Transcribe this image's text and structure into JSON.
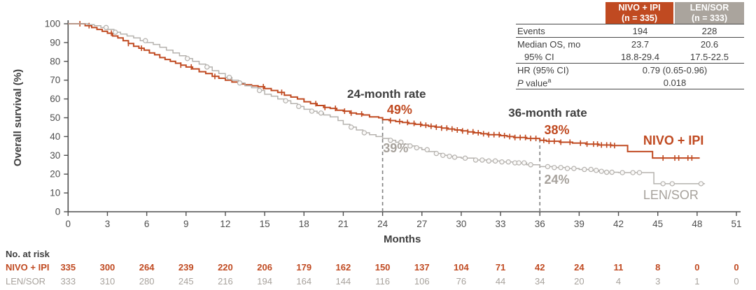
{
  "chart": {
    "colors": {
      "nivo": "#c04a21",
      "len_curve": "#b5b2ae",
      "len_text": "#a7a29c",
      "dark_text": "#3e3e3e",
      "axis": "#4f4f4f"
    }
  },
  "chart_data": {
    "type": "line",
    "subtype": "kaplan-meier-step",
    "title": "",
    "xlabel": "Months",
    "ylabel": "Overall survival (%)",
    "xlim": [
      0,
      51
    ],
    "ylim": [
      0,
      100
    ],
    "x_ticks": [
      0,
      3,
      6,
      9,
      12,
      15,
      18,
      21,
      24,
      27,
      30,
      33,
      36,
      39,
      42,
      45,
      48,
      51
    ],
    "y_ticks": [
      0,
      10,
      20,
      30,
      40,
      50,
      60,
      70,
      80,
      90,
      100
    ],
    "grid": false,
    "legend_position": "curve-end-labels",
    "series": [
      {
        "name": "NIVO + IPI",
        "color": "#c04a21",
        "censor_marker": "tick",
        "points": [
          [
            0,
            100
          ],
          [
            1.0,
            100
          ],
          [
            1.3,
            99
          ],
          [
            1.8,
            98
          ],
          [
            2.2,
            97
          ],
          [
            2.6,
            96
          ],
          [
            3.0,
            95
          ],
          [
            3.4,
            93.5
          ],
          [
            3.8,
            92.5
          ],
          [
            4.2,
            91
          ],
          [
            4.6,
            89.5
          ],
          [
            5.0,
            88
          ],
          [
            5.4,
            87
          ],
          [
            5.8,
            86
          ],
          [
            6.2,
            84.5
          ],
          [
            6.6,
            83.5
          ],
          [
            7.0,
            82
          ],
          [
            7.4,
            81
          ],
          [
            7.8,
            80
          ],
          [
            8.2,
            79
          ],
          [
            8.6,
            78
          ],
          [
            9.0,
            77
          ],
          [
            9.5,
            76
          ],
          [
            10.0,
            74.5
          ],
          [
            10.5,
            73.5
          ],
          [
            11.0,
            72
          ],
          [
            11.5,
            71
          ],
          [
            12.0,
            70
          ],
          [
            12.5,
            69
          ],
          [
            13.0,
            68
          ],
          [
            13.5,
            67.5
          ],
          [
            14.0,
            67
          ],
          [
            14.5,
            66.5
          ],
          [
            15.0,
            65.5
          ],
          [
            15.5,
            64.5
          ],
          [
            16.0,
            63.5
          ],
          [
            16.5,
            62
          ],
          [
            17.0,
            61
          ],
          [
            17.5,
            60
          ],
          [
            18.0,
            58.5
          ],
          [
            18.5,
            57.5
          ],
          [
            19.0,
            56.5
          ],
          [
            19.5,
            55.5
          ],
          [
            20.0,
            55
          ],
          [
            20.5,
            54
          ],
          [
            21.0,
            53.5
          ],
          [
            21.5,
            52.5
          ],
          [
            22.0,
            52
          ],
          [
            22.5,
            51.5
          ],
          [
            23.0,
            50.5
          ],
          [
            23.7,
            50
          ],
          [
            24.0,
            49
          ],
          [
            24.5,
            48.5
          ],
          [
            25.0,
            48
          ],
          [
            25.5,
            47.5
          ],
          [
            26.0,
            47
          ],
          [
            26.5,
            46.5
          ],
          [
            27.0,
            46
          ],
          [
            27.5,
            45.5
          ],
          [
            28.0,
            45
          ],
          [
            28.5,
            44.5
          ],
          [
            29.0,
            44
          ],
          [
            29.5,
            43.5
          ],
          [
            30.0,
            43
          ],
          [
            30.5,
            42.5
          ],
          [
            31.0,
            42
          ],
          [
            31.5,
            41.5
          ],
          [
            32.0,
            41
          ],
          [
            33.0,
            40.5
          ],
          [
            33.5,
            40
          ],
          [
            34.0,
            39.5
          ],
          [
            35.0,
            39
          ],
          [
            36.0,
            38
          ],
          [
            36.5,
            37.5
          ],
          [
            37.5,
            37
          ],
          [
            38.5,
            36.5
          ],
          [
            39.5,
            36
          ],
          [
            40.5,
            35.5
          ],
          [
            41.5,
            35.2
          ],
          [
            42.7,
            32
          ],
          [
            44.6,
            28.6
          ],
          [
            48.2,
            28.6
          ]
        ],
        "censor_months": [
          0.9,
          1.6,
          3.3,
          4.6,
          5.6,
          8.6,
          9.4,
          11.2,
          14.9,
          16.3,
          18.9,
          19.6,
          20.4,
          21.1,
          21.6,
          22.4,
          24.6,
          25.3,
          25.9,
          26.4,
          26.9,
          27.3,
          27.7,
          28.1,
          28.5,
          28.9,
          29.3,
          29.7,
          30.1,
          30.5,
          30.9,
          31.3,
          31.7,
          32.1,
          32.5,
          32.9,
          33.3,
          33.7,
          34.1,
          34.5,
          34.9,
          35.3,
          35.7,
          36.3,
          36.7,
          37.1,
          37.6,
          38.3,
          39.1,
          39.6,
          40.1,
          40.4,
          40.7,
          41.1,
          41.4,
          41.7,
          45.4,
          46.3,
          46.6,
          47.3,
          47.6
        ]
      },
      {
        "name": "LEN/SOR",
        "color": "#b5b2ae",
        "censor_marker": "circle",
        "points": [
          [
            0,
            100
          ],
          [
            1.1,
            100
          ],
          [
            1.5,
            99.5
          ],
          [
            2.0,
            99
          ],
          [
            2.5,
            98
          ],
          [
            3.0,
            97
          ],
          [
            3.5,
            95.5
          ],
          [
            4.0,
            94.5
          ],
          [
            4.5,
            93.5
          ],
          [
            5.0,
            92.5
          ],
          [
            5.5,
            91
          ],
          [
            6.0,
            90
          ],
          [
            6.5,
            89
          ],
          [
            7.0,
            87.5
          ],
          [
            7.5,
            86
          ],
          [
            8.0,
            84.5
          ],
          [
            8.5,
            83
          ],
          [
            9.0,
            81.5
          ],
          [
            9.5,
            80
          ],
          [
            10.0,
            78.5
          ],
          [
            10.5,
            77
          ],
          [
            11.0,
            75
          ],
          [
            11.5,
            73.5
          ],
          [
            12.0,
            71.5
          ],
          [
            12.5,
            70
          ],
          [
            13.0,
            68.5
          ],
          [
            13.5,
            67
          ],
          [
            14.0,
            66
          ],
          [
            14.5,
            64.5
          ],
          [
            15.0,
            62.5
          ],
          [
            15.5,
            61.5
          ],
          [
            16.0,
            60
          ],
          [
            16.5,
            59
          ],
          [
            17.0,
            57.5
          ],
          [
            17.5,
            56
          ],
          [
            18.0,
            54.5
          ],
          [
            18.5,
            53.5
          ],
          [
            19.0,
            52.5
          ],
          [
            19.5,
            51.5
          ],
          [
            20.0,
            50.5
          ],
          [
            20.6,
            48.5
          ],
          [
            21.0,
            46.5
          ],
          [
            21.5,
            45
          ],
          [
            22.0,
            43.5
          ],
          [
            22.5,
            42
          ],
          [
            23.0,
            41
          ],
          [
            23.5,
            40
          ],
          [
            24.0,
            39
          ],
          [
            24.5,
            38
          ],
          [
            25.0,
            37
          ],
          [
            25.5,
            36
          ],
          [
            26.0,
            35
          ],
          [
            26.5,
            34
          ],
          [
            27.0,
            33
          ],
          [
            27.5,
            32
          ],
          [
            28.0,
            31
          ],
          [
            28.5,
            30
          ],
          [
            29.0,
            29.5
          ],
          [
            29.5,
            29
          ],
          [
            30.0,
            28.5
          ],
          [
            31.0,
            27.5
          ],
          [
            32.0,
            27
          ],
          [
            33.0,
            26.5
          ],
          [
            34.0,
            26
          ],
          [
            35.0,
            25
          ],
          [
            36.0,
            24
          ],
          [
            37.0,
            23.5
          ],
          [
            38.0,
            23
          ],
          [
            39.0,
            22.5
          ],
          [
            40.0,
            22
          ],
          [
            40.5,
            21.5
          ],
          [
            41.0,
            21
          ],
          [
            42.0,
            20.8
          ],
          [
            44.7,
            14.9
          ],
          [
            48.6,
            14.9
          ]
        ],
        "censor_months": [
          2.9,
          3.6,
          5.9,
          9.1,
          10.6,
          12.3,
          13.1,
          14.6,
          16.6,
          17.6,
          18.6,
          19.3,
          21.6,
          22.6,
          24.6,
          25.4,
          26.1,
          26.6,
          27.4,
          28.1,
          28.6,
          29.1,
          29.5,
          30.3,
          31.1,
          31.6,
          32.1,
          32.6,
          33.1,
          33.6,
          34.1,
          34.4,
          34.8,
          35.3,
          36.6,
          37.1,
          37.6,
          38.1,
          38.6,
          39.4,
          39.9,
          40.3,
          40.7,
          41.1,
          41.5,
          42.3,
          43.1,
          43.6,
          45.4,
          46.1,
          48.3
        ]
      }
    ],
    "reference_lines": [
      {
        "month": 24,
        "pct_top": 50.2
      },
      {
        "month": 36,
        "pct_top": 39.8
      }
    ],
    "annotations": [
      {
        "id": "rate-24-title",
        "text": "24-month rate",
        "month": 24.3,
        "pct": 60.6,
        "color": "#3e3e3e",
        "size": 17,
        "weight": "bold",
        "anchor": "middle"
      },
      {
        "id": "rate-24-nivo",
        "text": "49%",
        "month": 25.3,
        "pct": 52.0,
        "color": "#c04a21",
        "size": 18,
        "weight": "bold",
        "anchor": "middle"
      },
      {
        "id": "rate-24-len",
        "text": "39%",
        "month": 25.0,
        "pct": 31.6,
        "color": "#a7a29c",
        "size": 18,
        "weight": "bold",
        "anchor": "middle"
      },
      {
        "id": "rate-36-title",
        "text": "36-month rate",
        "month": 36.6,
        "pct": 50.6,
        "color": "#3e3e3e",
        "size": 17,
        "weight": "bold",
        "anchor": "middle"
      },
      {
        "id": "rate-36-nivo",
        "text": "38%",
        "month": 37.3,
        "pct": 41.3,
        "color": "#c04a21",
        "size": 18,
        "weight": "bold",
        "anchor": "middle"
      },
      {
        "id": "rate-36-len",
        "text": "24%",
        "month": 37.3,
        "pct": 14.9,
        "color": "#a7a29c",
        "size": 18,
        "weight": "bold",
        "anchor": "middle"
      },
      {
        "id": "curve-label-nivo",
        "text": "NIVO + IPI",
        "month": 46.2,
        "pct": 35.7,
        "color": "#c04a21",
        "size": 18,
        "weight": "bold",
        "anchor": "middle"
      },
      {
        "id": "curve-label-len",
        "text": "LEN/SOR",
        "month": 46.0,
        "pct": 6.7,
        "color": "#a7a29c",
        "size": 18,
        "weight": "normal",
        "anchor": "middle"
      }
    ]
  },
  "summary_table": {
    "col1_header": [
      "NIVO + IPI",
      "(n = 335)"
    ],
    "col2_header": [
      "LEN/SOR",
      "(n = 333)"
    ],
    "rows": [
      {
        "label": "Events",
        "v1": "194",
        "v2": "228"
      },
      {
        "label": "Median OS, mo",
        "v1": "23.7",
        "v2": "20.6"
      },
      {
        "label": "95% CI",
        "v1": "18.8-29.4",
        "v2": "17.5-22.5"
      },
      {
        "label": "HR (95% CI)",
        "span": "0.79 (0.65-0.96)"
      },
      {
        "label_italic": "P",
        "label_rest": " value",
        "label_sup": "a",
        "span": "0.018"
      }
    ]
  },
  "risk_table": {
    "title": "No. at risk",
    "rows": [
      {
        "label": "NIVO + IPI",
        "values": [
          335,
          300,
          264,
          239,
          220,
          206,
          179,
          162,
          150,
          137,
          104,
          71,
          42,
          24,
          11,
          8,
          0,
          0
        ]
      },
      {
        "label": "LEN/SOR",
        "values": [
          333,
          310,
          280,
          245,
          216,
          194,
          164,
          144,
          116,
          106,
          76,
          44,
          34,
          20,
          4,
          3,
          1,
          0
        ]
      }
    ]
  }
}
